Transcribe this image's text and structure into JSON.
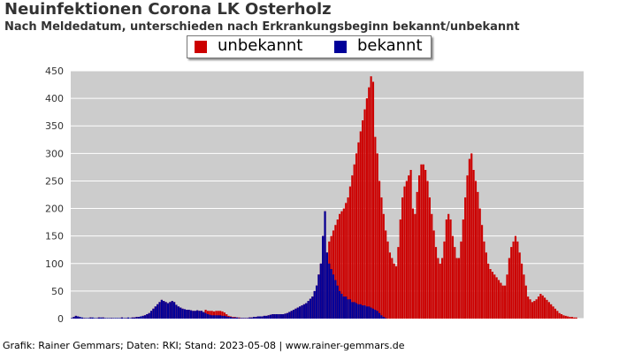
{
  "chart_data": {
    "type": "bar",
    "title": "Neuinfektionen Corona LK Osterholz",
    "subtitle": "Nach Meldedatum, unterschieden nach Erkrankungsbeginn bekannt/unbekannt",
    "xlabel": "",
    "ylabel": "",
    "ylim": [
      0,
      450
    ],
    "yticks": [
      0,
      50,
      100,
      150,
      200,
      250,
      300,
      350,
      400,
      450
    ],
    "grid": true,
    "legend_position": "top",
    "stacked": true,
    "series": [
      {
        "name": "unbekannt",
        "color": "#cc0000",
        "values": [
          0,
          2,
          3,
          1,
          0,
          0,
          1,
          0,
          0,
          1,
          0,
          0,
          0,
          1,
          0,
          1,
          0,
          0,
          0,
          1,
          0,
          0,
          0,
          0,
          1,
          0,
          1,
          0,
          0,
          1,
          1,
          2,
          1,
          0,
          2,
          3,
          4,
          5,
          6,
          6,
          5,
          5,
          4,
          3,
          3,
          3,
          4,
          4,
          3,
          3,
          3,
          3,
          2,
          2,
          2,
          2,
          2,
          2,
          3,
          3,
          4,
          4,
          6,
          12,
          16,
          14,
          14,
          14,
          13,
          14,
          14,
          14,
          13,
          11,
          8,
          5,
          4,
          3,
          3,
          2,
          2,
          1,
          1,
          1,
          1,
          1,
          2,
          2,
          2,
          3,
          3,
          3,
          4,
          4,
          4,
          4,
          3,
          3,
          4,
          4,
          5,
          5,
          6,
          8,
          8,
          10,
          12,
          14,
          16,
          20,
          22,
          24,
          26,
          28,
          32,
          35,
          40,
          50,
          60,
          70,
          80,
          100,
          120,
          140,
          150,
          160,
          170,
          180,
          190,
          195,
          200,
          210,
          220,
          240,
          260,
          280,
          300,
          320,
          340,
          360,
          380,
          400,
          420,
          440,
          430,
          330,
          300,
          250,
          220,
          190,
          160,
          140,
          120,
          110,
          100,
          95,
          130,
          180,
          220,
          240,
          250,
          260,
          270,
          200,
          190,
          230,
          260,
          280,
          280,
          270,
          250,
          220,
          190,
          160,
          130,
          110,
          100,
          110,
          140,
          180,
          190,
          180,
          150,
          130,
          110,
          110,
          140,
          180,
          220,
          260,
          290,
          300,
          270,
          250,
          230,
          200,
          170,
          140,
          120,
          100,
          90,
          85,
          80,
          75,
          70,
          65,
          60,
          60,
          80,
          110,
          130,
          140,
          150,
          140,
          120,
          100,
          80,
          60,
          40,
          35,
          30,
          32,
          35,
          40,
          45,
          42,
          38,
          34,
          30,
          26,
          22,
          18,
          14,
          10,
          8,
          6,
          5,
          4,
          3,
          3,
          2,
          2
        ]
      },
      {
        "name": "bekannt",
        "color": "#000099",
        "values": [
          1,
          3,
          5,
          4,
          3,
          2,
          1,
          1,
          1,
          2,
          2,
          1,
          1,
          2,
          2,
          2,
          1,
          1,
          1,
          1,
          1,
          1,
          1,
          1,
          2,
          1,
          1,
          2,
          1,
          2,
          2,
          3,
          3,
          4,
          5,
          6,
          8,
          10,
          14,
          18,
          22,
          26,
          30,
          34,
          32,
          30,
          28,
          30,
          32,
          30,
          25,
          22,
          20,
          18,
          17,
          16,
          16,
          15,
          14,
          14,
          15,
          14,
          14,
          12,
          10,
          8,
          7,
          6,
          6,
          6,
          6,
          6,
          5,
          5,
          4,
          3,
          3,
          2,
          2,
          2,
          1,
          1,
          1,
          1,
          1,
          2,
          2,
          3,
          3,
          4,
          4,
          4,
          5,
          5,
          6,
          7,
          8,
          8,
          8,
          8,
          8,
          8,
          9,
          10,
          12,
          14,
          16,
          18,
          20,
          22,
          24,
          26,
          28,
          32,
          36,
          40,
          50,
          60,
          80,
          100,
          150,
          195,
          120,
          100,
          90,
          80,
          70,
          60,
          50,
          45,
          40,
          40,
          35,
          35,
          30,
          30,
          28,
          26,
          26,
          24,
          24,
          22,
          22,
          20,
          18,
          16,
          14,
          10,
          6,
          3,
          1,
          0,
          0,
          0,
          0,
          0,
          0,
          0,
          0,
          0,
          0,
          0,
          0,
          0,
          0,
          0,
          0,
          0,
          0,
          0,
          0,
          0,
          0,
          0,
          0,
          0,
          0,
          0,
          0,
          0,
          0,
          0,
          0,
          0,
          0,
          0,
          0,
          0,
          0,
          0,
          0,
          0,
          0,
          0,
          0,
          0,
          0,
          0,
          0,
          0,
          0,
          0,
          0,
          0,
          0,
          0,
          0,
          0,
          0,
          0,
          0,
          0,
          0,
          0,
          0,
          0,
          0,
          0,
          0,
          0,
          0,
          0,
          0,
          0,
          0,
          0,
          0,
          0,
          0,
          0,
          0,
          0,
          0,
          0,
          0,
          0,
          0,
          0,
          0,
          0,
          0,
          0,
          0,
          0,
          0
        ]
      }
    ]
  },
  "colors": {
    "plot_background": "#cccccc",
    "grid": "#ffffff",
    "unbekannt": "#cc0000",
    "bekannt": "#000099"
  },
  "footer": "Grafik: Rainer Gemmars; Daten: RKI; Stand: 2023-05-08 | www.rainer-gemmars.de"
}
